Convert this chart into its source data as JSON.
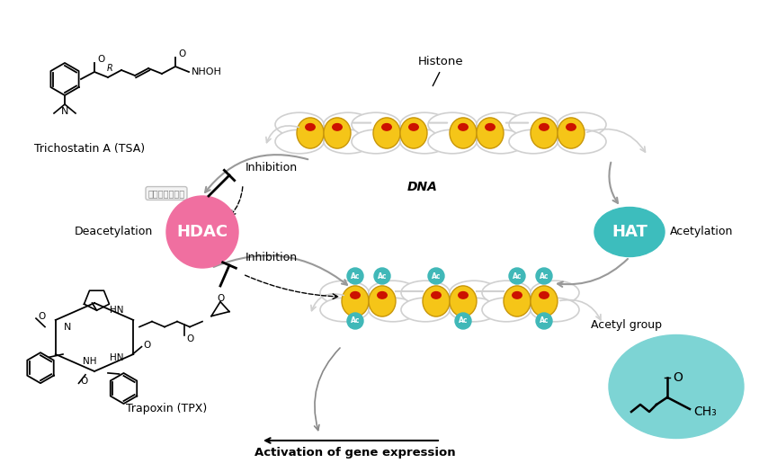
{
  "background_color": "#ffffff",
  "hdac_color": "#f06fa0",
  "hat_color": "#3dbdbd",
  "ac_color": "#40b8b8",
  "acetyl_bg_color": "#7dd4d4",
  "histone_color": "#f5c518",
  "histone_edge_color": "#c8960a",
  "dna_color": "#d0d0d0",
  "red_mark_color": "#cc1100",
  "hdac_label": "HDAC",
  "hat_label": "HAT",
  "deacetylation_label": "Deacetylation",
  "acetylation_label": "Acetylation",
  "inhibition1_label": "Inhibition",
  "inhibition2_label": "Inhibition",
  "histone_label": "Histone",
  "dna_label": "DNA",
  "ac_label": "Ac",
  "acetyl_group_label": "Acetyl group",
  "gene_expression_label": "Activation of gene expression",
  "tsa_label": "Trichostatin A (TSA)",
  "tpx_label": "Trapoxin (TPX)",
  "ch3_label": "CH₃",
  "watermark": "点击查看源网页"
}
